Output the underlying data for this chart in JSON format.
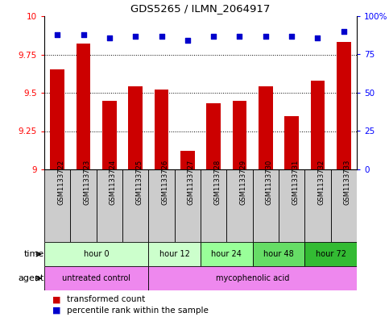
{
  "title": "GDS5265 / ILMN_2064917",
  "samples": [
    "GSM1133722",
    "GSM1133723",
    "GSM1133724",
    "GSM1133725",
    "GSM1133726",
    "GSM1133727",
    "GSM1133728",
    "GSM1133729",
    "GSM1133730",
    "GSM1133731",
    "GSM1133732",
    "GSM1133733"
  ],
  "bar_values": [
    9.65,
    9.82,
    9.45,
    9.54,
    9.52,
    9.12,
    9.43,
    9.45,
    9.54,
    9.35,
    9.58,
    9.83
  ],
  "percentile_values": [
    88,
    88,
    86,
    87,
    87,
    84,
    87,
    87,
    87,
    87,
    86,
    90
  ],
  "ylim_left": [
    9.0,
    10.0
  ],
  "ylim_right": [
    0,
    100
  ],
  "yticks_left": [
    9.0,
    9.25,
    9.5,
    9.75,
    10.0
  ],
  "yticks_right": [
    0,
    25,
    50,
    75,
    100
  ],
  "bar_color": "#cc0000",
  "dot_color": "#0000cc",
  "background_color": "#ffffff",
  "sample_box_color": "#cccccc",
  "time_groups": [
    {
      "label": "hour 0",
      "start": 0,
      "end": 4,
      "color": "#ccffcc"
    },
    {
      "label": "hour 12",
      "start": 4,
      "end": 6,
      "color": "#ccffcc"
    },
    {
      "label": "hour 24",
      "start": 6,
      "end": 8,
      "color": "#99ff99"
    },
    {
      "label": "hour 48",
      "start": 8,
      "end": 10,
      "color": "#66dd66"
    },
    {
      "label": "hour 72",
      "start": 10,
      "end": 12,
      "color": "#33bb33"
    }
  ],
  "agent_groups": [
    {
      "label": "untreated control",
      "start": 0,
      "end": 4,
      "color": "#ee88ee"
    },
    {
      "label": "mycophenolic acid",
      "start": 4,
      "end": 12,
      "color": "#ee88ee"
    }
  ],
  "legend_items": [
    {
      "label": "transformed count",
      "color": "#cc0000"
    },
    {
      "label": "percentile rank within the sample",
      "color": "#0000cc"
    }
  ],
  "grid_lines": [
    9.25,
    9.5,
    9.75
  ],
  "row_label_fontsize": 8,
  "tick_fontsize": 7.5,
  "sample_fontsize": 6,
  "legend_fontsize": 7.5,
  "bar_width": 0.55
}
